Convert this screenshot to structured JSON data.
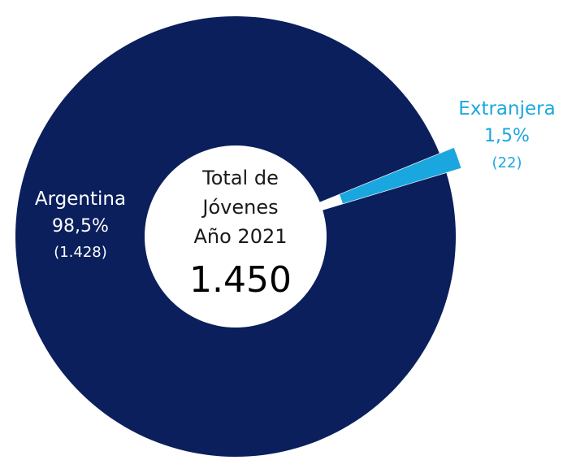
{
  "chart_data": {
    "type": "pie",
    "style": "donut",
    "center_label": {
      "lines": [
        "Total de",
        "Jóvenes",
        "Año 2021"
      ],
      "total": "1.450"
    },
    "slices": [
      {
        "name": "Argentina",
        "value": 1428,
        "percent": 98.5,
        "percent_label": "98,5%",
        "count_label": "(1.428)",
        "color": "#0a1f5c",
        "label_color": "#ffffff"
      },
      {
        "name": "Extranjera",
        "value": 22,
        "percent": 1.5,
        "percent_label": "1,5%",
        "count_label": "(22)",
        "color": "#1aa7e0",
        "label_color": "#1aa7e0"
      }
    ]
  }
}
